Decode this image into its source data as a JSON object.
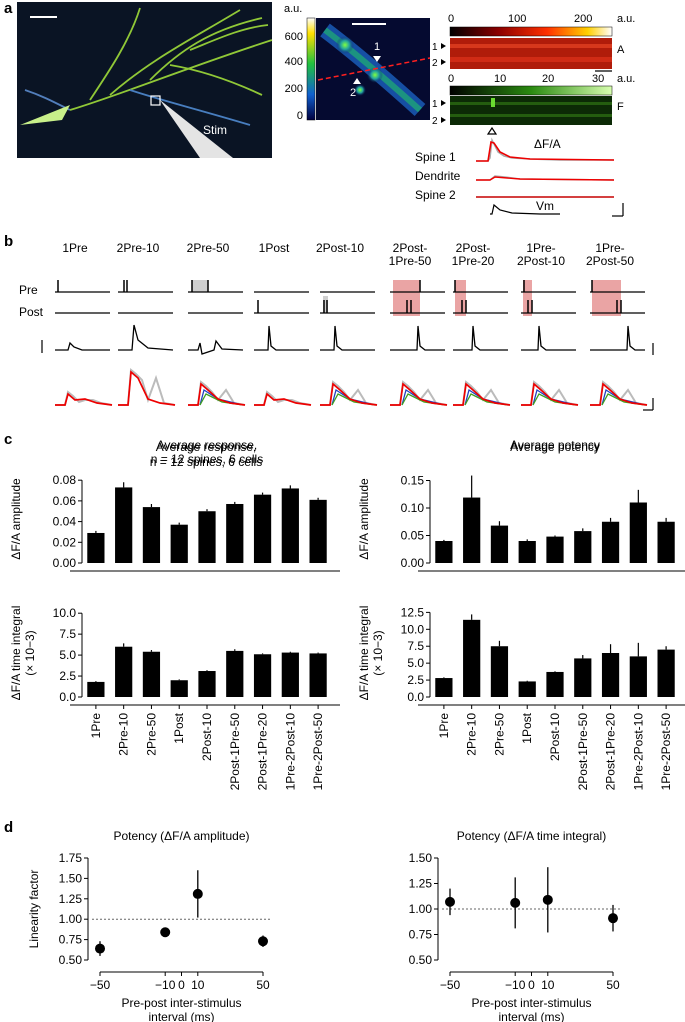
{
  "panels": {
    "a": "a",
    "b": "b",
    "c": "c",
    "d": "d"
  },
  "panel_a": {
    "stim_label": "Stim",
    "au_label": "a.u.",
    "cbar_ticks": [
      "600",
      "400",
      "200",
      "0"
    ],
    "spine_marks": [
      "1",
      "2"
    ],
    "kymo_axis": [
      "0",
      "100",
      "200"
    ],
    "kymo_time_axis": [
      "0",
      "10",
      "20",
      "30"
    ],
    "kymo_A": "A",
    "kymo_F": "F",
    "row_labels": [
      "1",
      "2"
    ],
    "dff_label": "ΔF/A",
    "trace_labels": [
      "Spine 1",
      "Dendrite",
      "Spine 2"
    ],
    "vm_label": "Vm"
  },
  "panel_b": {
    "protocols": [
      "1Pre",
      "2Pre-10",
      "2Pre-50",
      "1Post",
      "2Post-10",
      "2Post-\n1Pre-50",
      "2Post-\n1Pre-20",
      "1Pre-\n2Post-10",
      "1Pre-\n2Post-50"
    ],
    "pre_label": "Pre",
    "post_label": "Post"
  },
  "chart_data": [
    {
      "type": "bar",
      "title": "Average response,\nn = 12 spines, 6 cells",
      "ylabel": "ΔF/A amplitude",
      "categories": [
        "1Pre",
        "2Pre-10",
        "2Pre-50",
        "1Post",
        "2Post-10",
        "2Post-1Pre-50",
        "2Post-1Pre-20",
        "1Pre-2Post-10",
        "1Pre-2Post-50"
      ],
      "values": [
        0.029,
        0.073,
        0.054,
        0.037,
        0.05,
        0.057,
        0.066,
        0.072,
        0.061
      ],
      "errors": [
        0.002,
        0.005,
        0.003,
        0.002,
        0.002,
        0.002,
        0.002,
        0.003,
        0.002
      ],
      "ylim": [
        0,
        0.085
      ],
      "yticks": [
        "0.00",
        "0.02",
        "0.04",
        "0.06",
        "0.08"
      ]
    },
    {
      "type": "bar",
      "title": "Average potency",
      "ylabel": "ΔF/A amplitude",
      "categories": [
        "1Pre",
        "2Pre-10",
        "2Pre-50",
        "1Post",
        "2Post-10",
        "2Post-1Pre-50",
        "2Post-1Pre-20",
        "1Pre-2Post-10",
        "1Pre-2Post-50"
      ],
      "values": [
        0.04,
        0.119,
        0.068,
        0.04,
        0.048,
        0.058,
        0.075,
        0.11,
        0.075
      ],
      "errors": [
        0.002,
        0.04,
        0.008,
        0.003,
        0.002,
        0.005,
        0.007,
        0.023,
        0.007
      ],
      "ylim": [
        0,
        0.16
      ],
      "yticks": [
        "0.00",
        "0.05",
        "0.10",
        "0.15"
      ]
    },
    {
      "type": "bar",
      "title": "",
      "ylabel": "ΔF/A time integral",
      "ylabel2": "(× 10−3)",
      "categories": [
        "1Pre",
        "2Pre-10",
        "2Pre-50",
        "1Post",
        "2Post-10",
        "2Post-1Pre-50",
        "2Post-1Pre-20",
        "1Pre-2Post-10",
        "1Pre-2Post-50"
      ],
      "values": [
        1.8,
        6.0,
        5.4,
        2.0,
        3.1,
        5.5,
        5.1,
        5.3,
        5.2
      ],
      "errors": [
        0.1,
        0.4,
        0.2,
        0.1,
        0.1,
        0.2,
        0.1,
        0.1,
        0.1
      ],
      "ylim": [
        0,
        10.5
      ],
      "yticks": [
        "0.0",
        "2.5",
        "5.0",
        "7.5",
        "10.0"
      ]
    },
    {
      "type": "bar",
      "title": "",
      "ylabel": "ΔF/A time integral",
      "ylabel2": "(× 10−3)",
      "categories": [
        "1Pre",
        "2Pre-10",
        "2Pre-50",
        "1Post",
        "2Post-10",
        "2Post-1Pre-50",
        "2Post-1Pre-20",
        "1Pre-2Post-10",
        "1Pre-2Post-50"
      ],
      "values": [
        2.8,
        11.4,
        7.5,
        2.3,
        3.7,
        5.7,
        6.5,
        6.0,
        7.0
      ],
      "errors": [
        0.1,
        0.8,
        0.8,
        0.1,
        0.1,
        0.5,
        1.3,
        2.0,
        0.5
      ],
      "ylim": [
        0,
        13
      ],
      "yticks": [
        "0.0",
        "2.5",
        "5.0",
        "7.5",
        "10.0",
        "12.5"
      ]
    },
    {
      "type": "scatter",
      "title": "Potency (ΔF/A amplitude)",
      "ylabel": "Linearity factor",
      "xlabel": "Pre-post inter-stimulus\ninterval (ms)",
      "x": [
        -50,
        -10,
        10,
        50
      ],
      "y": [
        0.64,
        0.84,
        1.31,
        0.73
      ],
      "errors": [
        0.09,
        0.03,
        0.29,
        0.07
      ],
      "xticks": [
        "−50",
        "−10",
        "0",
        "10",
        "50"
      ],
      "yticks": [
        "0.50",
        "0.75",
        "1.00",
        "1.25",
        "1.50",
        "1.75"
      ],
      "ylim": [
        0.5,
        1.75
      ],
      "reference_line": 1.0
    },
    {
      "type": "scatter",
      "title": "Potency (ΔF/A time integral)",
      "ylabel": "",
      "xlabel": "Pre-post inter-stimulus\ninterval (ms)",
      "x": [
        -50,
        -10,
        10,
        50
      ],
      "y": [
        1.07,
        1.06,
        1.09,
        0.91
      ],
      "errors": [
        0.13,
        0.25,
        0.32,
        0.13
      ],
      "xticks": [
        "−50",
        "−10",
        "0",
        "10",
        "50"
      ],
      "yticks": [
        "0.50",
        "0.75",
        "1.00",
        "1.25",
        "1.50"
      ],
      "ylim": [
        0.5,
        1.5
      ],
      "reference_line": 1.0
    }
  ]
}
